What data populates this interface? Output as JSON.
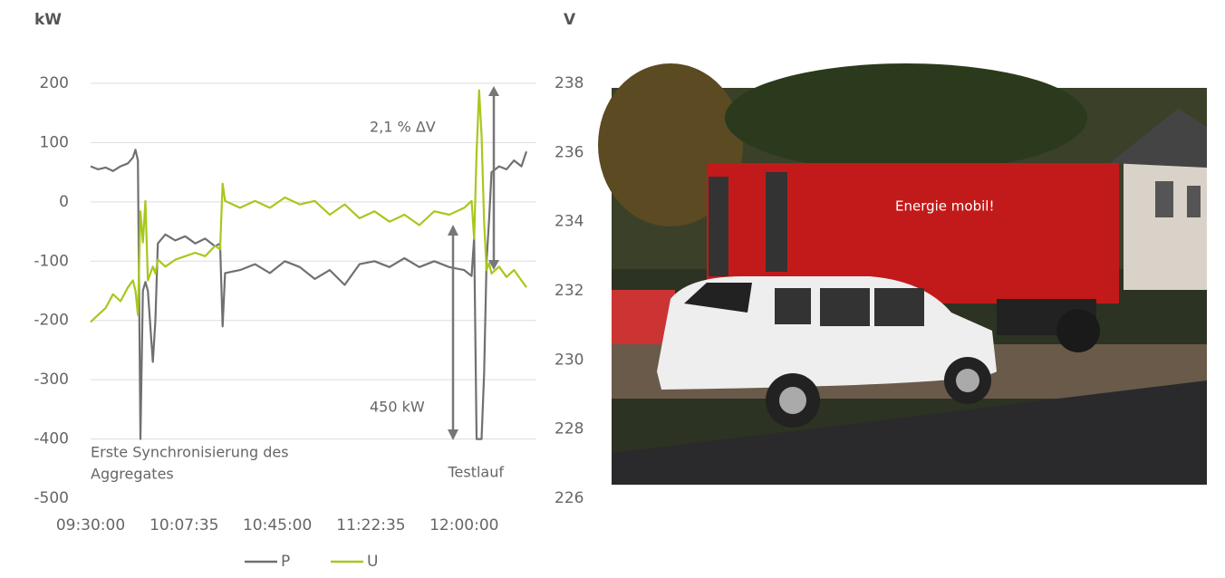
{
  "chart_data": {
    "type": "line",
    "y_unit": "kW",
    "y2_unit": "V",
    "x": [
      "09:30:00",
      "09:33:00",
      "09:36:00",
      "09:39:00",
      "09:42:00",
      "09:45:00",
      "09:47:00",
      "09:48:00",
      "09:49:00",
      "09:50:00",
      "09:51:00",
      "09:52:00",
      "09:53:00",
      "09:55:00",
      "09:56:00",
      "09:57:00",
      "10:00:00",
      "10:04:00",
      "10:08:00",
      "10:12:00",
      "10:16:00",
      "10:20:00",
      "10:22:00",
      "10:23:00",
      "10:24:00",
      "10:30:00",
      "10:36:00",
      "10:42:00",
      "10:48:00",
      "10:54:00",
      "11:00:00",
      "11:06:00",
      "11:12:00",
      "11:18:00",
      "11:24:00",
      "11:30:00",
      "11:36:00",
      "11:42:00",
      "11:48:00",
      "11:54:00",
      "12:00:00",
      "12:03:00",
      "12:04:00",
      "12:05:00",
      "12:06:00",
      "12:07:00",
      "12:08:00",
      "12:09:00",
      "12:10:00",
      "12:11:00",
      "12:14:00",
      "12:17:00",
      "12:20:00",
      "12:23:00",
      "12:25:00"
    ],
    "series": [
      {
        "name": "P",
        "color": "#707070",
        "values": [
          60,
          55,
          58,
          52,
          60,
          65,
          75,
          88,
          70,
          -400,
          -150,
          -135,
          -150,
          -270,
          -200,
          -70,
          -55,
          -65,
          -58,
          -70,
          -62,
          -75,
          -70,
          -210,
          -120,
          -115,
          -105,
          -120,
          -100,
          -110,
          -130,
          -115,
          -140,
          -105,
          -100,
          -110,
          -95,
          -110,
          -100,
          -110,
          -115,
          -125,
          -60,
          -400,
          -400,
          -400,
          -290,
          -100,
          -30,
          50,
          60,
          55,
          70,
          60,
          85
        ]
      },
      {
        "name": "U",
        "color": "#a6c81e",
        "axis": "y2",
        "values": [
          231.1,
          231.3,
          231.5,
          231.9,
          231.7,
          232.1,
          232.3,
          232.0,
          231.3,
          234.3,
          233.4,
          234.6,
          232.3,
          232.7,
          232.5,
          232.9,
          232.7,
          232.9,
          233.0,
          233.1,
          233.0,
          233.3,
          233.2,
          235.1,
          234.6,
          234.4,
          234.6,
          234.4,
          234.7,
          234.5,
          234.6,
          234.2,
          234.5,
          234.1,
          234.3,
          234.0,
          234.2,
          233.9,
          234.3,
          234.2,
          234.4,
          234.6,
          233.5,
          236.0,
          237.8,
          236.5,
          234.0,
          232.6,
          232.8,
          232.5,
          232.7,
          232.4,
          232.6,
          232.3,
          232.1
        ]
      }
    ],
    "xlim": [
      "09:30:00",
      "12:29:00"
    ],
    "xticks": [
      "09:30:00",
      "10:07:35",
      "10:45:00",
      "11:22:35",
      "12:00:00"
    ],
    "ylim": [
      -500,
      200
    ],
    "yticks": [
      -500,
      -400,
      -300,
      -200,
      -100,
      0,
      100,
      200
    ],
    "y2lim": [
      226,
      238
    ],
    "y2ticks": [
      226,
      228,
      230,
      232,
      234,
      236,
      238
    ],
    "grid": true,
    "annotations": [
      [
        "2,1 % ΔV"
      ],
      [
        "450 kW"
      ],
      [
        "Erste Synchronisierung des",
        "Aggregates"
      ],
      [
        "Testlauf"
      ]
    ]
  },
  "photo": {
    "trailer_text": "Energie mobil!"
  }
}
